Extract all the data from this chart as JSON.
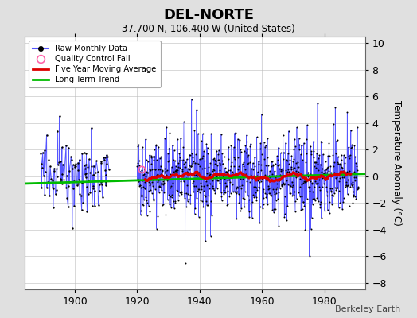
{
  "title": "DEL-NORTE",
  "subtitle": "37.700 N, 106.400 W (United States)",
  "ylabel": "Temperature Anomaly (°C)",
  "watermark": "Berkeley Earth",
  "ylim": [
    -8.5,
    10.5
  ],
  "yticks": [
    -8,
    -6,
    -4,
    -2,
    0,
    2,
    4,
    6,
    8,
    10
  ],
  "xlim": [
    1884,
    1993
  ],
  "xticks": [
    1900,
    1920,
    1940,
    1960,
    1980
  ],
  "background_color": "#e0e0e0",
  "plot_bg_color": "#ffffff",
  "raw_line_color": "#5555ff",
  "raw_dot_color": "#000000",
  "moving_avg_color": "#dd0000",
  "trend_color": "#00bb00",
  "qc_fail_color": "#ff66aa",
  "seed": 42
}
